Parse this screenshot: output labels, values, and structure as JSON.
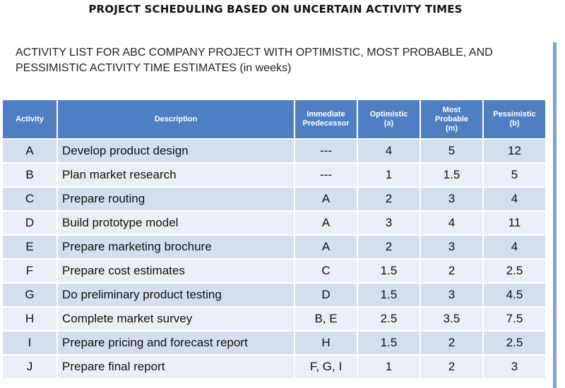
{
  "title": "PROJECT SCHEDULING BASED ON UNCERTAIN ACTIVITY TIMES",
  "subtitle": {
    "line1": "ACTIVITY LIST FOR ABC COMPANY PROJECT WITH OPTIMISTIC, MOST PROBABLE, AND",
    "line2": "PESSIMISTIC ACTIVITY TIME ESTIMATES (in weeks)"
  },
  "table": {
    "headers": {
      "activity": "Activity",
      "description": "Description",
      "predecessor": [
        "Immediate",
        "Predecessor"
      ],
      "optimistic": [
        "Optimistic",
        "(a)"
      ],
      "most_probable": [
        "Most",
        "Probable",
        "(m)"
      ],
      "pessimistic": [
        "Pessimistic",
        "(b)"
      ]
    },
    "rows": [
      {
        "activity": "A",
        "description": "Develop product design",
        "predecessor": "---",
        "optimistic": "4",
        "most_probable": "5",
        "pessimistic": "12"
      },
      {
        "activity": "B",
        "description": "Plan market research",
        "predecessor": "---",
        "optimistic": "1",
        "most_probable": "1.5",
        "pessimistic": "5"
      },
      {
        "activity": "C",
        "description": "Prepare routing",
        "predecessor": "A",
        "optimistic": "2",
        "most_probable": "3",
        "pessimistic": "4"
      },
      {
        "activity": "D",
        "description": "Build prototype model",
        "predecessor": "A",
        "optimistic": "3",
        "most_probable": "4",
        "pessimistic": "11"
      },
      {
        "activity": "E",
        "description": "Prepare marketing brochure",
        "predecessor": "A",
        "optimistic": "2",
        "most_probable": "3",
        "pessimistic": "4"
      },
      {
        "activity": "F",
        "description": "Prepare cost estimates",
        "predecessor": "C",
        "optimistic": "1.5",
        "most_probable": "2",
        "pessimistic": "2.5"
      },
      {
        "activity": "G",
        "description": "Do preliminary product testing",
        "predecessor": "D",
        "optimistic": "1.5",
        "most_probable": "3",
        "pessimistic": "4.5"
      },
      {
        "activity": "H",
        "description": "Complete market survey",
        "predecessor": "B, E",
        "optimistic": "2.5",
        "most_probable": "3.5",
        "pessimistic": "7.5"
      },
      {
        "activity": "I",
        "description": "Prepare pricing and forecast report",
        "predecessor": "H",
        "optimistic": "1.5",
        "most_probable": "2",
        "pessimistic": "2.5"
      },
      {
        "activity": "J",
        "description": "Prepare final report",
        "predecessor": "F, G, I",
        "optimistic": "1",
        "most_probable": "2",
        "pessimistic": "3"
      }
    ]
  },
  "colors": {
    "header_bg": "#4f7fc3",
    "row_dark": "#d3deee",
    "row_light": "#eaeff7",
    "side_bar": "#7fa2d4"
  }
}
